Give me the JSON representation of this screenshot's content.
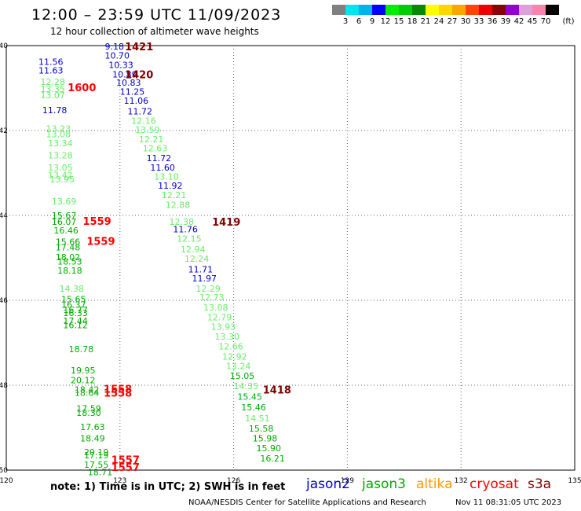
{
  "title": "12:00 – 23:59 UTC 11/09/2023",
  "subtitle": "12 hour collection of altimeter wave heights",
  "colorbar": {
    "unit": "(ft)",
    "ticks": [
      "3",
      "6",
      "9",
      "12",
      "15",
      "18",
      "21",
      "24",
      "27",
      "30",
      "33",
      "36",
      "39",
      "42",
      "45",
      "70"
    ],
    "colors": [
      "#808080",
      "#00e5ee",
      "#00b2ee",
      "#0000ff",
      "#00ee00",
      "#00cd00",
      "#008b00",
      "#ffff00",
      "#ffd700",
      "#ffa500",
      "#ff4500",
      "#ee0000",
      "#8b0000",
      "#9400d3",
      "#dda0dd",
      "#ff82ab",
      "#000000"
    ]
  },
  "map": {
    "lon_range": [
      120,
      135
    ],
    "lat_range": [
      -50,
      -40
    ],
    "lon_ticks": [
      "120",
      "123",
      "126",
      "129",
      "132",
      "135"
    ],
    "lat_ticks": [
      "-40",
      "-42",
      "-44",
      "-46",
      "-48",
      "-50"
    ],
    "lat_tick_values": [
      -40,
      -42,
      -44,
      -46,
      -48,
      -50
    ],
    "lon_tick_values": [
      120,
      123,
      126,
      129,
      132,
      135
    ]
  },
  "chart_data": {
    "type": "scatter",
    "xlabel": "",
    "ylabel": "",
    "xlim": [
      120,
      135
    ],
    "ylim": [
      -50,
      -40
    ],
    "satellites": [
      {
        "name": "jason2",
        "color": "#0000cc"
      },
      {
        "name": "jason3",
        "color": "#00aa00"
      },
      {
        "name": "altika",
        "color": "#ff9900"
      },
      {
        "name": "cryosat",
        "color": "#ff0000"
      },
      {
        "name": "s3a",
        "color": "#800000"
      }
    ],
    "time_labels": [
      {
        "text": "1421",
        "lon": 123.13,
        "lat": -40.02,
        "color": "#800000"
      },
      {
        "text": "1420",
        "lon": 123.13,
        "lat": -40.68,
        "color": "#800000"
      },
      {
        "text": "1419",
        "lon": 125.43,
        "lat": -44.15,
        "color": "#800000"
      },
      {
        "text": "1418",
        "lon": 126.77,
        "lat": -48.1,
        "color": "#800000"
      },
      {
        "text": "1600",
        "lon": 121.62,
        "lat": -40.98,
        "color": "#ff0000"
      },
      {
        "text": "1559",
        "lon": 122.02,
        "lat": -44.13,
        "color": "#ff0000"
      },
      {
        "text": "1559",
        "lon": 122.12,
        "lat": -44.6,
        "color": "#ff0000"
      },
      {
        "text": "1558",
        "lon": 122.57,
        "lat": -48.08,
        "color": "#ff0000"
      },
      {
        "text": "1558",
        "lon": 122.57,
        "lat": -48.18,
        "color": "#ff0000"
      },
      {
        "text": "1557",
        "lon": 122.77,
        "lat": -49.75,
        "color": "#ff0000"
      },
      {
        "text": "1557",
        "lon": 122.77,
        "lat": -49.93,
        "color": "#ff0000"
      }
    ],
    "points": [
      {
        "swh": "9.18",
        "lon": 122.6,
        "lat": -40.02,
        "color": "#0000cc"
      },
      {
        "swh": "10.70",
        "lon": 122.6,
        "lat": -40.23,
        "color": "#0000cc"
      },
      {
        "swh": "10.33",
        "lon": 122.7,
        "lat": -40.45,
        "color": "#0000cc"
      },
      {
        "swh": "10.89",
        "lon": 122.8,
        "lat": -40.68,
        "color": "#0000cc"
      },
      {
        "swh": "10.83",
        "lon": 122.9,
        "lat": -40.87,
        "color": "#0000cc"
      },
      {
        "swh": "11.25",
        "lon": 123.0,
        "lat": -41.08,
        "color": "#0000cc"
      },
      {
        "swh": "11.06",
        "lon": 123.1,
        "lat": -41.3,
        "color": "#0000cc"
      },
      {
        "swh": "11.72",
        "lon": 123.2,
        "lat": -41.55,
        "color": "#0000cc"
      },
      {
        "swh": "12.16",
        "lon": 123.3,
        "lat": -41.77,
        "color": "#66ee66"
      },
      {
        "swh": "13.59",
        "lon": 123.4,
        "lat": -41.98,
        "color": "#66ee66"
      },
      {
        "swh": "12.21",
        "lon": 123.5,
        "lat": -42.2,
        "color": "#66ee66"
      },
      {
        "swh": "12.63",
        "lon": 123.6,
        "lat": -42.42,
        "color": "#66ee66"
      },
      {
        "swh": "11.72",
        "lon": 123.7,
        "lat": -42.65,
        "color": "#0000cc"
      },
      {
        "swh": "11.60",
        "lon": 123.8,
        "lat": -42.87,
        "color": "#0000cc"
      },
      {
        "swh": "13.10",
        "lon": 123.9,
        "lat": -43.08,
        "color": "#66ee66"
      },
      {
        "swh": "11.92",
        "lon": 124.0,
        "lat": -43.3,
        "color": "#0000cc"
      },
      {
        "swh": "12.21",
        "lon": 124.1,
        "lat": -43.52,
        "color": "#66ee66"
      },
      {
        "swh": "12.88",
        "lon": 124.2,
        "lat": -43.75,
        "color": "#66ee66"
      },
      {
        "swh": "12.38",
        "lon": 124.3,
        "lat": -44.15,
        "color": "#66ee66"
      },
      {
        "swh": "11.76",
        "lon": 124.4,
        "lat": -44.32,
        "color": "#0000cc"
      },
      {
        "swh": "12.15",
        "lon": 124.5,
        "lat": -44.55,
        "color": "#66ee66"
      },
      {
        "swh": "12.94",
        "lon": 124.6,
        "lat": -44.8,
        "color": "#66ee66"
      },
      {
        "swh": "12.24",
        "lon": 124.7,
        "lat": -45.02,
        "color": "#66ee66"
      },
      {
        "swh": "11.71",
        "lon": 124.8,
        "lat": -45.27,
        "color": "#0000cc"
      },
      {
        "swh": "11.97",
        "lon": 124.9,
        "lat": -45.48,
        "color": "#0000cc"
      },
      {
        "swh": "12.29",
        "lon": 125.0,
        "lat": -45.72,
        "color": "#66ee66"
      },
      {
        "swh": "12.73",
        "lon": 125.1,
        "lat": -45.93,
        "color": "#66ee66"
      },
      {
        "swh": "13.08",
        "lon": 125.2,
        "lat": -46.17,
        "color": "#66ee66"
      },
      {
        "swh": "12.79",
        "lon": 125.3,
        "lat": -46.4,
        "color": "#66ee66"
      },
      {
        "swh": "13.93",
        "lon": 125.4,
        "lat": -46.62,
        "color": "#66ee66"
      },
      {
        "swh": "13.30",
        "lon": 125.5,
        "lat": -46.85,
        "color": "#66ee66"
      },
      {
        "swh": "12.66",
        "lon": 125.6,
        "lat": -47.08,
        "color": "#66ee66"
      },
      {
        "swh": "12.92",
        "lon": 125.7,
        "lat": -47.32,
        "color": "#66ee66"
      },
      {
        "swh": "13.24",
        "lon": 125.8,
        "lat": -47.55,
        "color": "#66ee66"
      },
      {
        "swh": "15.05",
        "lon": 125.9,
        "lat": -47.78,
        "color": "#00aa00"
      },
      {
        "swh": "14.35",
        "lon": 126.0,
        "lat": -48.02,
        "color": "#66ee66"
      },
      {
        "swh": "15.45",
        "lon": 126.1,
        "lat": -48.27,
        "color": "#00aa00"
      },
      {
        "swh": "15.46",
        "lon": 126.2,
        "lat": -48.52,
        "color": "#00aa00"
      },
      {
        "swh": "14.51",
        "lon": 126.3,
        "lat": -48.78,
        "color": "#66ee66"
      },
      {
        "swh": "15.58",
        "lon": 126.4,
        "lat": -49.02,
        "color": "#00aa00"
      },
      {
        "swh": "15.98",
        "lon": 126.5,
        "lat": -49.25,
        "color": "#00aa00"
      },
      {
        "swh": "15.90",
        "lon": 126.6,
        "lat": -49.48,
        "color": "#00aa00"
      },
      {
        "swh": "16.21",
        "lon": 126.7,
        "lat": -49.72,
        "color": "#00aa00"
      },
      {
        "swh": "11.56",
        "lon": 120.85,
        "lat": -40.38,
        "color": "#0000cc"
      },
      {
        "swh": "11.63",
        "lon": 120.85,
        "lat": -40.58,
        "color": "#0000cc"
      },
      {
        "swh": "12.28",
        "lon": 120.9,
        "lat": -40.85,
        "color": "#66ee66"
      },
      {
        "swh": "13.35",
        "lon": 120.9,
        "lat": -41.02,
        "color": "#66ee66"
      },
      {
        "swh": "13.07",
        "lon": 120.9,
        "lat": -41.17,
        "color": "#66ee66"
      },
      {
        "swh": "11.78",
        "lon": 120.95,
        "lat": -41.52,
        "color": "#0000cc"
      },
      {
        "swh": "13.23",
        "lon": 121.05,
        "lat": -41.95,
        "color": "#66ee66"
      },
      {
        "swh": "13.08",
        "lon": 121.05,
        "lat": -42.08,
        "color": "#66ee66"
      },
      {
        "swh": "13.34",
        "lon": 121.1,
        "lat": -42.3,
        "color": "#66ee66"
      },
      {
        "swh": "13.28",
        "lon": 121.1,
        "lat": -42.58,
        "color": "#66ee66"
      },
      {
        "swh": "13.05",
        "lon": 121.1,
        "lat": -42.87,
        "color": "#66ee66"
      },
      {
        "swh": "13.42",
        "lon": 121.1,
        "lat": -43.05,
        "color": "#66ee66"
      },
      {
        "swh": "13.95",
        "lon": 121.15,
        "lat": -43.15,
        "color": "#66ee66"
      },
      {
        "swh": "13.69",
        "lon": 121.2,
        "lat": -43.67,
        "color": "#66ee66"
      },
      {
        "swh": "15.67",
        "lon": 121.2,
        "lat": -44.0,
        "color": "#00aa00"
      },
      {
        "swh": "16.07",
        "lon": 121.2,
        "lat": -44.15,
        "color": "#00aa00"
      },
      {
        "swh": "16.46",
        "lon": 121.25,
        "lat": -44.35,
        "color": "#00aa00"
      },
      {
        "swh": "15.66",
        "lon": 121.3,
        "lat": -44.62,
        "color": "#00aa00"
      },
      {
        "swh": "17.48",
        "lon": 121.3,
        "lat": -44.75,
        "color": "#00aa00"
      },
      {
        "swh": "18.02",
        "lon": 121.3,
        "lat": -44.98,
        "color": "#00aa00"
      },
      {
        "swh": "18.53",
        "lon": 121.35,
        "lat": -45.08,
        "color": "#00aa00"
      },
      {
        "swh": "18.18",
        "lon": 121.35,
        "lat": -45.3,
        "color": "#00aa00"
      },
      {
        "swh": "14.38",
        "lon": 121.4,
        "lat": -45.72,
        "color": "#66ee66"
      },
      {
        "swh": "15.65",
        "lon": 121.45,
        "lat": -45.97,
        "color": "#00aa00"
      },
      {
        "swh": "16.37",
        "lon": 121.45,
        "lat": -46.1,
        "color": "#00aa00"
      },
      {
        "swh": "16.77",
        "lon": 121.5,
        "lat": -46.22,
        "color": "#00aa00"
      },
      {
        "swh": "16.33",
        "lon": 121.5,
        "lat": -46.3,
        "color": "#00aa00"
      },
      {
        "swh": "17.44",
        "lon": 121.5,
        "lat": -46.48,
        "color": "#00aa00"
      },
      {
        "swh": "16.12",
        "lon": 121.5,
        "lat": -46.58,
        "color": "#00aa00"
      },
      {
        "swh": "18.78",
        "lon": 121.65,
        "lat": -47.15,
        "color": "#00aa00"
      },
      {
        "swh": "19.95",
        "lon": 121.7,
        "lat": -47.65,
        "color": "#00aa00"
      },
      {
        "swh": "20.12",
        "lon": 121.7,
        "lat": -47.88,
        "color": "#00aa00"
      },
      {
        "swh": "18.42",
        "lon": 121.8,
        "lat": -48.1,
        "color": "#00aa00"
      },
      {
        "swh": "18.64",
        "lon": 121.8,
        "lat": -48.18,
        "color": "#00aa00"
      },
      {
        "swh": "17.59",
        "lon": 121.85,
        "lat": -48.55,
        "color": "#00aa00"
      },
      {
        "swh": "18.30",
        "lon": 121.85,
        "lat": -48.65,
        "color": "#00aa00"
      },
      {
        "swh": "17.63",
        "lon": 121.95,
        "lat": -48.98,
        "color": "#00aa00"
      },
      {
        "swh": "18.49",
        "lon": 121.95,
        "lat": -49.25,
        "color": "#00aa00"
      },
      {
        "swh": "20.19",
        "lon": 122.05,
        "lat": -49.57,
        "color": "#00aa00"
      },
      {
        "swh": "17.19",
        "lon": 122.05,
        "lat": -49.65,
        "color": "#00aa00"
      },
      {
        "swh": "17.55",
        "lon": 122.05,
        "lat": -49.87,
        "color": "#00aa00"
      },
      {
        "swh": "18.71",
        "lon": 122.15,
        "lat": -50.05,
        "color": "#00aa00"
      }
    ]
  },
  "note": "note:  1) Time is in UTC; 2) SWH is in feet",
  "legend": {
    "jason2": "jason2",
    "jason3": "jason3",
    "altika": "altika",
    "cryosat": "cryosat",
    "s3a": "s3a"
  },
  "footer_left": "NOAA/NESDIS Center for Satellite Applications and Research",
  "footer_right": "Nov 11 08:31:05 UTC 2023"
}
